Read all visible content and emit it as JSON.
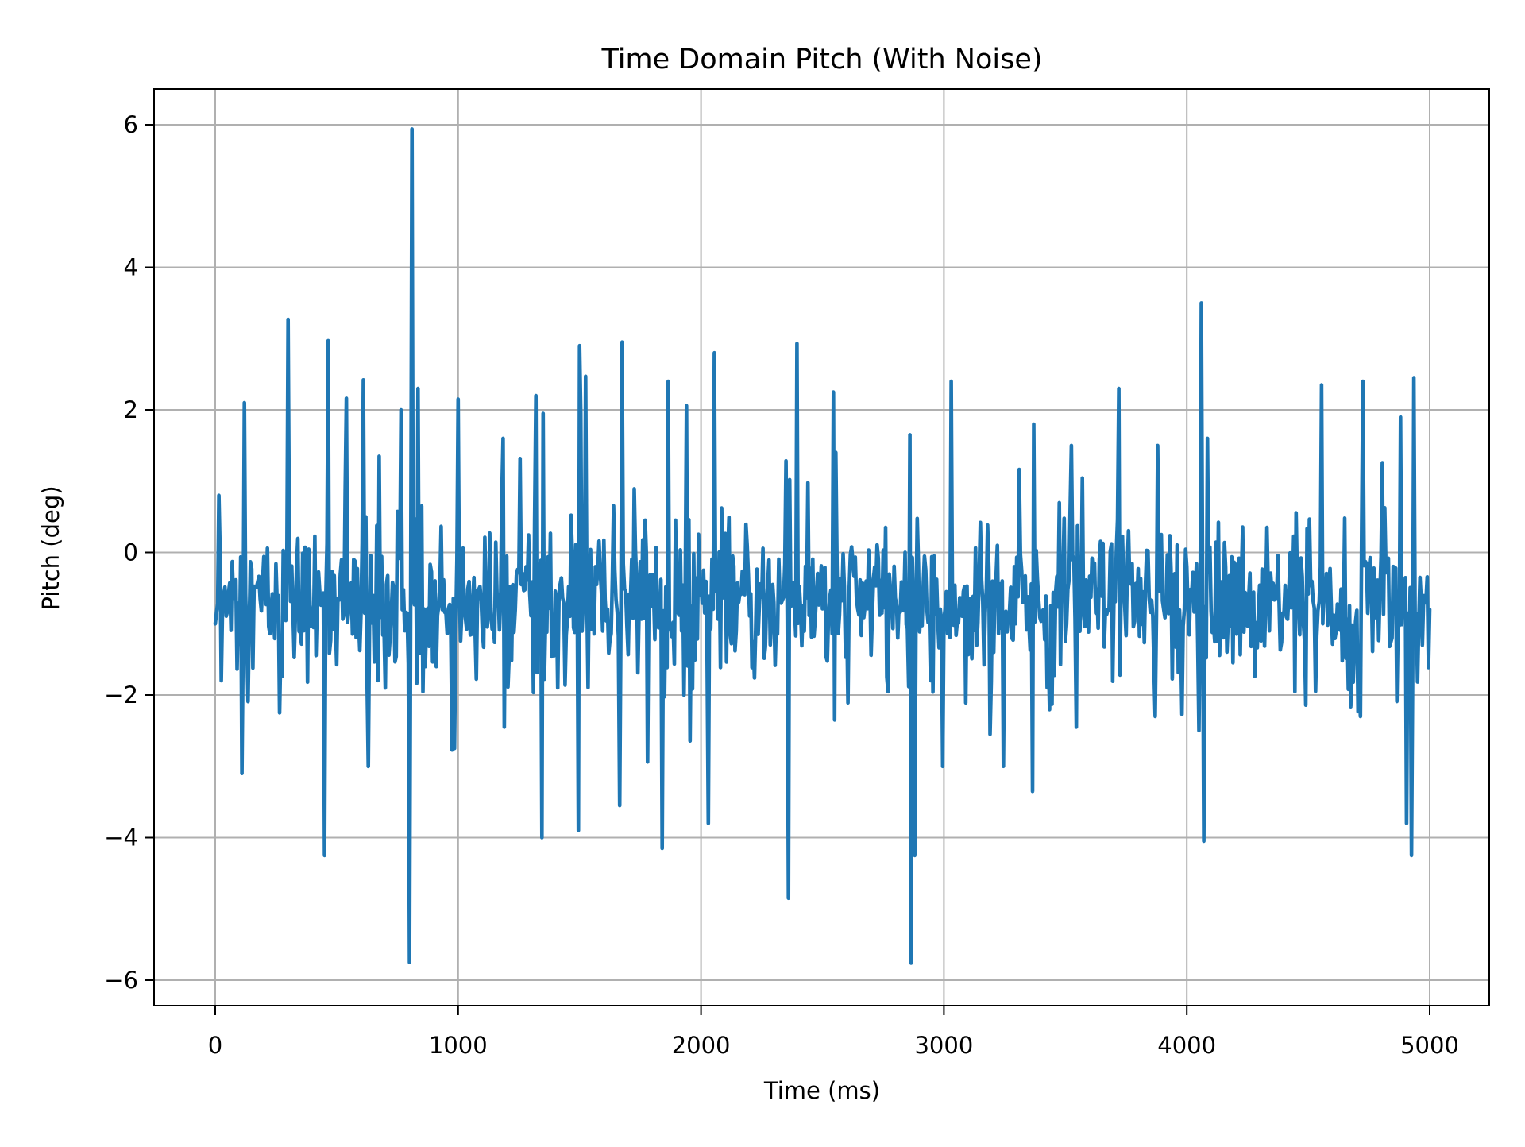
{
  "chart_data": {
    "type": "line",
    "title": "Time Domain Pitch (With Noise)",
    "xlabel": "Time (ms)",
    "ylabel": "Pitch (deg)",
    "xlim": [
      -250,
      5250
    ],
    "ylim": [
      -6.36,
      6.5
    ],
    "xticks": [
      0,
      1000,
      2000,
      3000,
      4000,
      5000
    ],
    "xtick_labels": [
      "0",
      "1000",
      "2000",
      "3000",
      "4000",
      "5000"
    ],
    "yticks": [
      -6,
      -4,
      -2,
      0,
      2,
      4,
      6
    ],
    "ytick_labels": [
      "−6",
      "−4",
      "−2",
      "0",
      "2",
      "4",
      "6"
    ],
    "grid": true,
    "legend": null,
    "series": [
      {
        "name": "pitch",
        "color": "#1f77b4",
        "x_start": 0,
        "x_end": 5000,
        "x_step": 5,
        "mean": -0.7,
        "noise_std": 0.9,
        "notable_points": [
          {
            "x": 0,
            "y": -1.0
          },
          {
            "x": 15,
            "y": 0.8
          },
          {
            "x": 25,
            "y": -1.8
          },
          {
            "x": 110,
            "y": -3.1
          },
          {
            "x": 120,
            "y": 2.1
          },
          {
            "x": 265,
            "y": -2.25
          },
          {
            "x": 300,
            "y": 3.27
          },
          {
            "x": 450,
            "y": -4.25
          },
          {
            "x": 465,
            "y": 2.97
          },
          {
            "x": 610,
            "y": 2.42
          },
          {
            "x": 630,
            "y": -3.0
          },
          {
            "x": 765,
            "y": 2.0
          },
          {
            "x": 798,
            "y": -5.75
          },
          {
            "x": 811,
            "y": 5.94
          },
          {
            "x": 835,
            "y": 2.3
          },
          {
            "x": 985,
            "y": -2.75
          },
          {
            "x": 1000,
            "y": 2.15
          },
          {
            "x": 1185,
            "y": 1.6
          },
          {
            "x": 1190,
            "y": -2.45
          },
          {
            "x": 1345,
            "y": -4.0
          },
          {
            "x": 1350,
            "y": 1.95
          },
          {
            "x": 1495,
            "y": -3.9
          },
          {
            "x": 1500,
            "y": 2.9
          },
          {
            "x": 1525,
            "y": 2.47
          },
          {
            "x": 1665,
            "y": -3.55
          },
          {
            "x": 1675,
            "y": 2.95
          },
          {
            "x": 1840,
            "y": -4.15
          },
          {
            "x": 1865,
            "y": 2.4
          },
          {
            "x": 2030,
            "y": -3.8
          },
          {
            "x": 2055,
            "y": 2.8
          },
          {
            "x": 2360,
            "y": -4.85
          },
          {
            "x": 2395,
            "y": 2.93
          },
          {
            "x": 2545,
            "y": 2.25
          },
          {
            "x": 2550,
            "y": -2.35
          },
          {
            "x": 2860,
            "y": 1.65
          },
          {
            "x": 2866,
            "y": -5.76
          },
          {
            "x": 2880,
            "y": -4.25
          },
          {
            "x": 3030,
            "y": 2.4
          },
          {
            "x": 3190,
            "y": -2.55
          },
          {
            "x": 3365,
            "y": -3.35
          },
          {
            "x": 3370,
            "y": 1.8
          },
          {
            "x": 3525,
            "y": 1.5
          },
          {
            "x": 3545,
            "y": -2.45
          },
          {
            "x": 3720,
            "y": 2.3
          },
          {
            "x": 3870,
            "y": -2.3
          },
          {
            "x": 3880,
            "y": 1.5
          },
          {
            "x": 4050,
            "y": -2.5
          },
          {
            "x": 4060,
            "y": 3.5
          },
          {
            "x": 4070,
            "y": -4.05
          },
          {
            "x": 4085,
            "y": 1.6
          },
          {
            "x": 4530,
            "y": -1.95
          },
          {
            "x": 4555,
            "y": 2.35
          },
          {
            "x": 4715,
            "y": -2.3
          },
          {
            "x": 4725,
            "y": 2.4
          },
          {
            "x": 4880,
            "y": 1.9
          },
          {
            "x": 4905,
            "y": -3.8
          },
          {
            "x": 4925,
            "y": -4.25
          },
          {
            "x": 4935,
            "y": 2.45
          },
          {
            "x": 4970,
            "y": -1.3
          },
          {
            "x": 5000,
            "y": -0.8
          }
        ]
      }
    ]
  }
}
